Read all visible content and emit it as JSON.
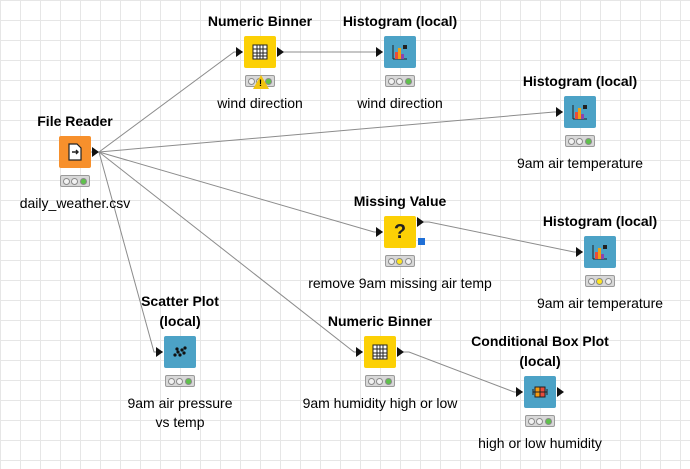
{
  "colors": {
    "reader": "#f7902c",
    "manipulator": "#fcd005",
    "viewer": "#4ca2c6",
    "light_off": "#f2f2f2",
    "light_green": "#5ec24b",
    "light_yellow": "#ffe620"
  },
  "nodes": {
    "file_reader": {
      "title": "File Reader",
      "label": "daily_weather.csv",
      "icon": "file-reader-icon"
    },
    "binner_wind": {
      "title": "Numeric Binner",
      "label": "wind direction",
      "icon": "binner-icon",
      "warning": "!"
    },
    "hist_wind": {
      "title": "Histogram (local)",
      "label": "wind direction",
      "icon": "histogram-icon"
    },
    "hist_temp": {
      "title": "Histogram (local)",
      "label": "9am air temperature",
      "icon": "histogram-icon"
    },
    "missing_value": {
      "title": "Missing Value",
      "label": "remove 9am missing air temp",
      "icon": "question-icon",
      "icon_text": "?"
    },
    "hist_temp2": {
      "title": "Histogram (local)",
      "label": "9am air temperature",
      "icon": "histogram-icon"
    },
    "scatter": {
      "title": "Scatter Plot (local)",
      "label": "9am air pressure vs temp",
      "icon": "scatter-icon"
    },
    "binner_humidity": {
      "title": "Numeric Binner",
      "label": "9am humidity high or low",
      "icon": "binner-icon"
    },
    "box_plot": {
      "title": "Conditional Box Plot (local)",
      "label": "high or low humidity",
      "icon": "boxplot-icon"
    }
  },
  "node_status": {
    "file_reader": "green",
    "binner_wind": "green",
    "hist_wind": "green",
    "hist_temp": "green",
    "missing_value": "yellow",
    "hist_temp2": "yellow",
    "scatter": "green",
    "binner_humidity": "green",
    "box_plot": "green"
  }
}
